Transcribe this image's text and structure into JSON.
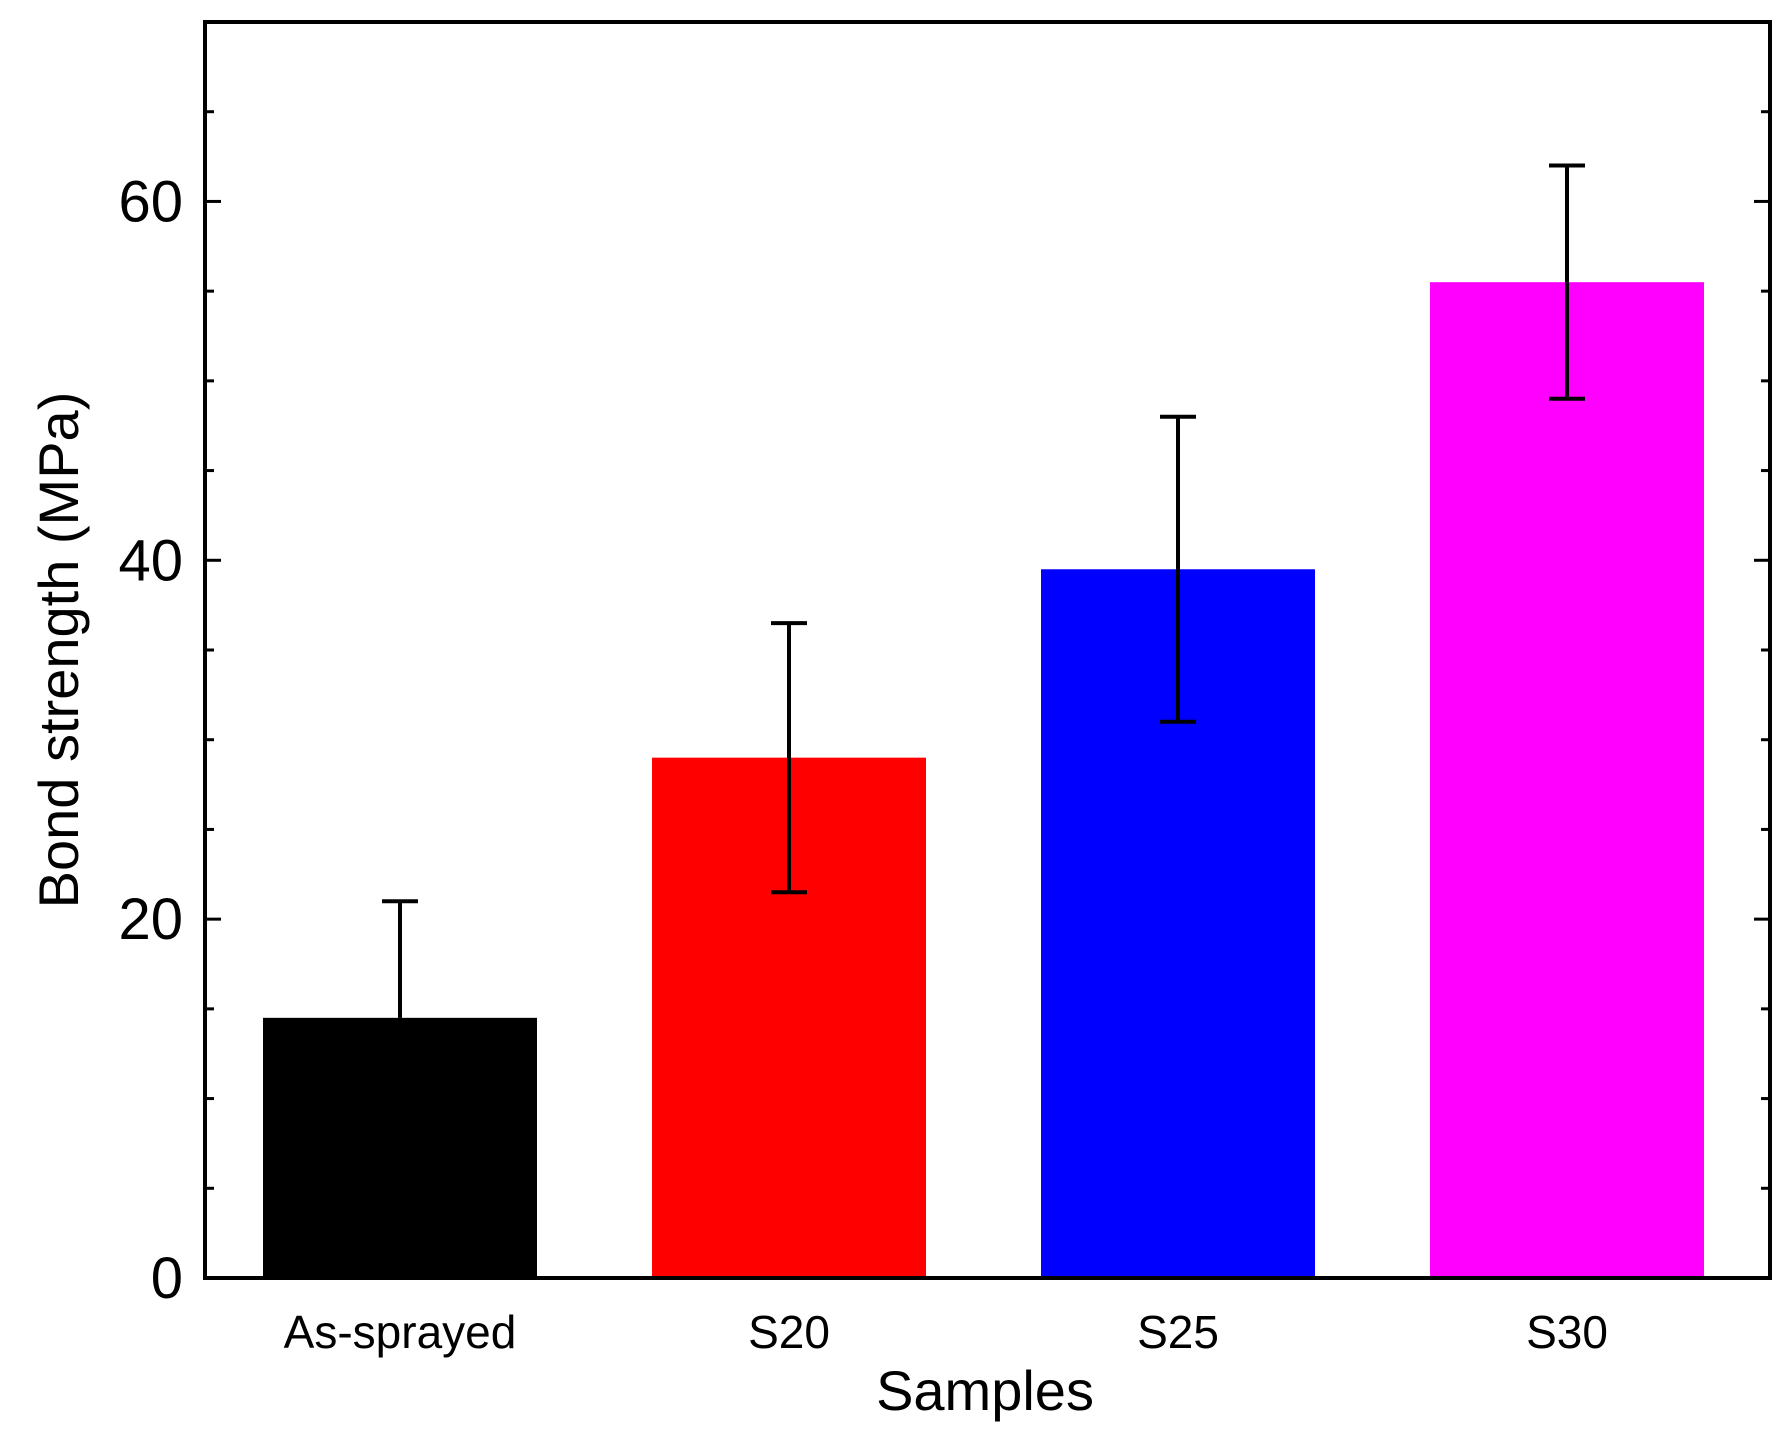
{
  "chart_data": {
    "type": "bar",
    "title": "",
    "xlabel": "Samples",
    "ylabel": "Bond strength (MPa)",
    "categories": [
      "As-sprayed",
      "S20",
      "S25",
      "S30"
    ],
    "values": [
      14.5,
      29,
      39.5,
      55.5
    ],
    "errors_lower": [
      0,
      7.5,
      8.5,
      6.5
    ],
    "errors_upper": [
      6.5,
      7.5,
      8.5,
      6.5
    ],
    "colors": [
      "#000000",
      "#ff0000",
      "#0000ff",
      "#ff00ff"
    ],
    "ylim": [
      0,
      70
    ],
    "yticks": [
      0,
      20,
      40,
      60
    ],
    "yminor_step": 5,
    "grid": false,
    "legend": false
  }
}
